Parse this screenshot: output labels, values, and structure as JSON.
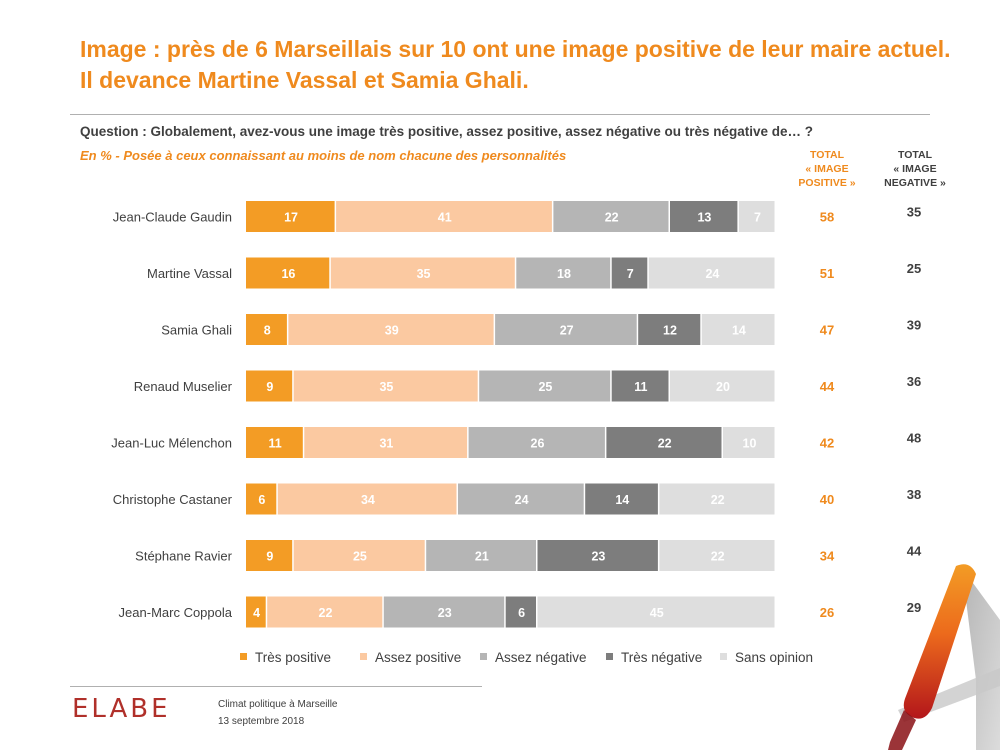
{
  "title_line1": "Image : près de 6 Marseillais sur 10 ont une image positive de leur maire actuel.",
  "title_line2": "Il devance Martine Vassal et Samia Ghali.",
  "question": "Question : Globalement, avez-vous une image très positive, assez positive, assez négative ou très négative de… ?",
  "subtitle": "En  % - Posée à ceux connaissant au moins de nom chacune des personnalités",
  "col_positive": [
    "TOTAL",
    "« IMAGE",
    "POSITIVE »"
  ],
  "col_negative": [
    "TOTAL",
    "« IMAGE",
    "NEGATIVE »"
  ],
  "colors": {
    "tres_positive": "#f39c25",
    "assez_positive": "#fbc9a1",
    "assez_negative": "#b5b5b5",
    "tres_negative": "#7d7d7d",
    "sans_opinion": "#dedede",
    "accent": "#ef8a1e",
    "text": "#404040"
  },
  "chart_data": {
    "type": "bar",
    "orientation": "horizontal-stacked-100",
    "categories": [
      "Jean-Claude Gaudin",
      "Martine Vassal",
      "Samia Ghali",
      "Renaud Muselier",
      "Jean-Luc Mélenchon",
      "Christophe Castaner",
      "Stéphane Ravier",
      "Jean-Marc Coppola"
    ],
    "series": [
      {
        "name": "Très positive",
        "values": [
          17,
          16,
          8,
          9,
          11,
          6,
          9,
          4
        ]
      },
      {
        "name": "Assez positive",
        "values": [
          41,
          35,
          39,
          35,
          31,
          34,
          25,
          22
        ]
      },
      {
        "name": "Assez négative",
        "values": [
          22,
          18,
          27,
          25,
          26,
          24,
          21,
          23
        ]
      },
      {
        "name": "Très négative",
        "values": [
          13,
          7,
          12,
          11,
          22,
          14,
          23,
          6
        ]
      },
      {
        "name": "Sans opinion",
        "values": [
          7,
          24,
          14,
          20,
          10,
          22,
          22,
          45
        ]
      }
    ],
    "total_positive": [
      58,
      51,
      47,
      44,
      42,
      40,
      34,
      26
    ],
    "total_negative": [
      35,
      25,
      39,
      36,
      48,
      38,
      44,
      29
    ],
    "legend": [
      "Très positive",
      "Assez positive",
      "Assez négative",
      "Très négative",
      "Sans opinion"
    ],
    "legend_position": "bottom",
    "unit": "%"
  },
  "footer": {
    "logo": "ELABE",
    "line1": "Climat politique à Marseille",
    "line2": "13 septembre 2018"
  }
}
